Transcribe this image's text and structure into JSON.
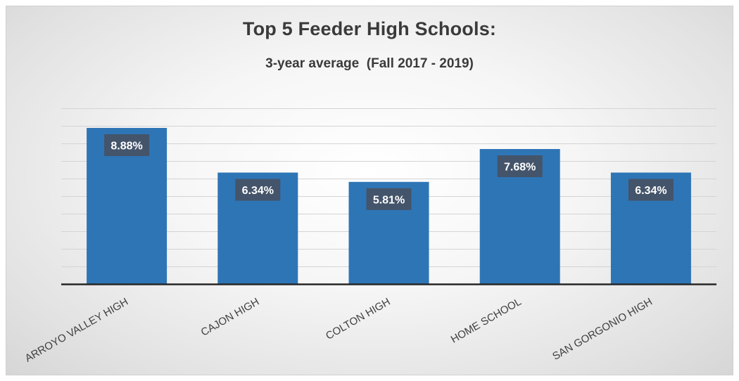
{
  "chart_data": {
    "type": "bar",
    "title": "Top 5 Feeder High Schools:",
    "subtitle": "3-year average  (Fall 2017 - 2019)",
    "xlabel": "",
    "ylabel": "",
    "categories": [
      "ARROYO VALLEY HIGH",
      "CAJON HIGH",
      "COLTON HIGH",
      "HOME SCHOOL",
      "SAN GORGONIO HIGH"
    ],
    "values": [
      8.88,
      6.34,
      5.81,
      7.68,
      6.34
    ],
    "data_labels": [
      "8.88%",
      "6.34%",
      "5.81%",
      "7.68%",
      "6.34%"
    ],
    "ylim": [
      0,
      10
    ],
    "grid": true,
    "y_axis_visible": false,
    "bar_color": "#2e75b6",
    "label_box_color": "#44546a",
    "legend": "none"
  }
}
